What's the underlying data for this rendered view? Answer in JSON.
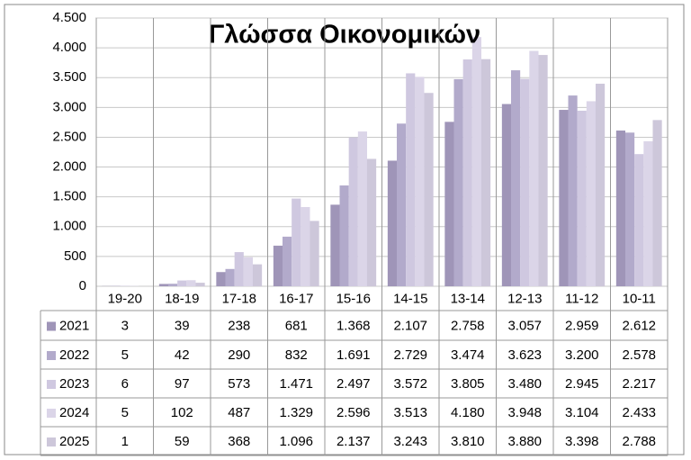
{
  "chart_data": {
    "type": "bar",
    "title": "Γλώσσα Οικονομικών",
    "categories": [
      "19-20",
      "18-19",
      "17-18",
      "16-17",
      "15-16",
      "14-15",
      "13-14",
      "12-13",
      "11-12",
      "10-11"
    ],
    "series": [
      {
        "name": "2021",
        "color": "#9f95b8",
        "values": [
          3,
          39,
          238,
          681,
          1368,
          2107,
          2758,
          3057,
          2959,
          2612
        ],
        "value_labels": [
          "3",
          "39",
          "238",
          "681",
          "1.368",
          "2.107",
          "2.758",
          "3.057",
          "2.959",
          "2.612"
        ]
      },
      {
        "name": "2022",
        "color": "#b2aacb",
        "values": [
          5,
          42,
          290,
          832,
          1691,
          2729,
          3474,
          3623,
          3200,
          2578
        ],
        "value_labels": [
          "5",
          "42",
          "290",
          "832",
          "1.691",
          "2.729",
          "3.474",
          "3.623",
          "3.200",
          "2.578"
        ]
      },
      {
        "name": "2023",
        "color": "#cfc8e0",
        "values": [
          6,
          97,
          573,
          1471,
          2497,
          3572,
          3805,
          3480,
          2945,
          2217
        ],
        "value_labels": [
          "6",
          "97",
          "573",
          "1.471",
          "2.497",
          "3.572",
          "3.805",
          "3.480",
          "2.945",
          "2.217"
        ]
      },
      {
        "name": "2024",
        "color": "#dbd5e8",
        "values": [
          5,
          102,
          487,
          1329,
          2596,
          3513,
          4180,
          3948,
          3104,
          2433
        ],
        "value_labels": [
          "5",
          "102",
          "487",
          "1.329",
          "2.596",
          "3.513",
          "4.180",
          "3.948",
          "3.104",
          "2.433"
        ]
      },
      {
        "name": "2025",
        "color": "#cdc7da",
        "values": [
          1,
          59,
          368,
          1096,
          2137,
          3243,
          3810,
          3880,
          3398,
          2788
        ],
        "value_labels": [
          "1",
          "59",
          "368",
          "1.096",
          "2.137",
          "3.243",
          "3.810",
          "3.880",
          "3.398",
          "2.788"
        ]
      }
    ],
    "ylim": [
      0,
      4500
    ],
    "yticks": [
      0,
      500,
      {
        "value": 1000,
        "label": "1.000"
      },
      {
        "value": 1500,
        "label": "1.500"
      },
      {
        "value": 2000,
        "label": "2.000"
      },
      {
        "value": 2500,
        "label": "2.500"
      },
      {
        "value": 3000,
        "label": "3.000"
      },
      {
        "value": 3500,
        "label": "3.500"
      },
      {
        "value": 4000,
        "label": "4.000"
      },
      {
        "value": 4500,
        "label": "4.500"
      }
    ],
    "grid": true
  }
}
